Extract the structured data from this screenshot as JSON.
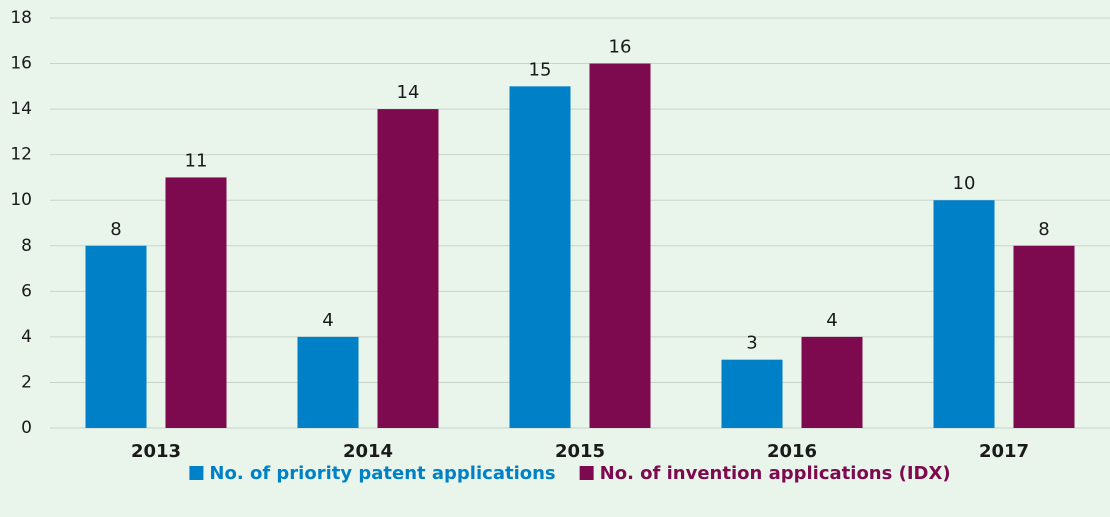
{
  "chart_data": {
    "type": "bar",
    "categories": [
      "2013",
      "2014",
      "2015",
      "2016",
      "2017"
    ],
    "series": [
      {
        "name": "No. of priority patent applications",
        "color": "#0080c6",
        "values": [
          8,
          4,
          15,
          3,
          10
        ]
      },
      {
        "name": "No. of invention applications (IDX)",
        "color": "#7d0a4e",
        "values": [
          11,
          14,
          16,
          4,
          8
        ]
      }
    ],
    "ylim": [
      0,
      18
    ],
    "yticks": [
      0,
      2,
      4,
      6,
      8,
      10,
      12,
      14,
      16,
      18
    ],
    "grid": true,
    "legend": "bottom"
  }
}
